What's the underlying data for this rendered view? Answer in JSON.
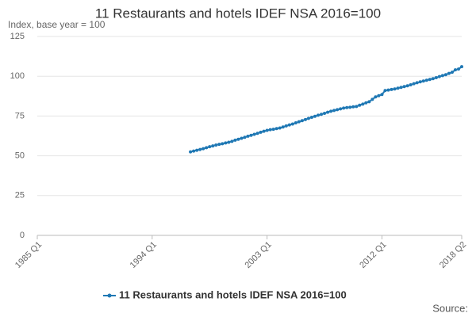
{
  "chart_data": {
    "type": "line",
    "title": "11 Restaurants and hotels IDEF NSA 2016=100",
    "y_axis_label": "Index, base year = 100",
    "source": "Source:",
    "ylim": [
      0,
      125
    ],
    "yticks": [
      0,
      25,
      50,
      75,
      100,
      125
    ],
    "grid": true,
    "legend": "bottom",
    "categories": [
      "1985 Q1",
      null,
      null,
      null,
      null,
      null,
      null,
      null,
      null,
      null,
      null,
      null,
      null,
      null,
      null,
      null,
      null,
      null,
      null,
      null,
      null,
      null,
      null,
      null,
      null,
      null,
      null,
      null,
      null,
      null,
      null,
      null,
      null,
      null,
      null,
      null,
      "1994 Q1",
      null,
      null,
      null,
      null,
      null,
      null,
      null,
      null,
      null,
      null,
      null,
      null,
      null,
      null,
      null,
      null,
      null,
      null,
      null,
      null,
      null,
      null,
      null,
      null,
      null,
      null,
      null,
      null,
      null,
      null,
      null,
      null,
      null,
      null,
      null,
      "2003 Q1",
      null,
      null,
      null,
      null,
      null,
      null,
      null,
      null,
      null,
      null,
      null,
      null,
      null,
      null,
      null,
      null,
      null,
      null,
      null,
      null,
      null,
      null,
      null,
      null,
      null,
      null,
      null,
      null,
      null,
      null,
      null,
      null,
      null,
      null,
      null,
      "2012 Q1",
      null,
      null,
      null,
      null,
      null,
      null,
      null,
      null,
      null,
      null,
      null,
      null,
      null,
      null,
      null,
      null,
      null,
      null,
      null,
      null,
      null,
      null,
      null,
      null,
      "2018 Q2"
    ],
    "series": [
      {
        "name": "11 Restaurants and hotels IDEF NSA 2016=100",
        "color": "#1f78b4",
        "values": [
          null,
          null,
          null,
          null,
          null,
          null,
          null,
          null,
          null,
          null,
          null,
          null,
          null,
          null,
          null,
          null,
          null,
          null,
          null,
          null,
          null,
          null,
          null,
          null,
          null,
          null,
          null,
          null,
          null,
          null,
          null,
          null,
          null,
          null,
          null,
          null,
          null,
          null,
          null,
          null,
          null,
          null,
          null,
          null,
          null,
          null,
          null,
          null,
          52.5,
          53,
          53.5,
          54,
          54.5,
          55.1,
          55.7,
          56.2,
          56.8,
          57.2,
          57.6,
          58.1,
          58.5,
          59.1,
          59.8,
          60.4,
          61,
          61.6,
          62.3,
          62.9,
          63.5,
          64.1,
          64.8,
          65.4,
          66,
          66.4,
          66.7,
          67.1,
          67.5,
          68.1,
          68.8,
          69.4,
          70,
          70.7,
          71.4,
          72.1,
          72.8,
          73.5,
          74.2,
          74.8,
          75.5,
          76.1,
          76.7,
          77.4,
          78,
          78.5,
          79,
          79.5,
          80,
          80.3,
          80.5,
          80.8,
          81,
          81.8,
          82.5,
          83.3,
          84,
          85.5,
          87,
          87.8,
          88.5,
          91,
          91.3,
          91.7,
          92,
          92.5,
          93,
          93.5,
          94,
          94.6,
          95.3,
          95.9,
          96.5,
          97,
          97.5,
          98,
          98.5,
          99.1,
          99.8,
          100.4,
          101,
          101.8,
          102.5,
          104,
          104.5,
          106
        ]
      }
    ]
  }
}
